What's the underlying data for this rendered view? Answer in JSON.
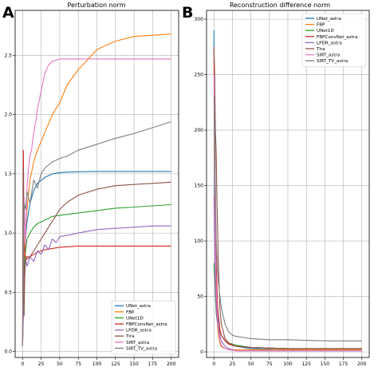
{
  "colors": {
    "UNet_astra": "#1f77b4",
    "FBP": "#ff7f0e",
    "UNet1D": "#2ca02c",
    "FBPConvNet_astra": "#d62728",
    "LPDR_astra": "#9467bd",
    "Tira": "#8c564b",
    "SIRT_astra": "#e377c2",
    "SIRT_TV_astra": "#7f7f7f"
  },
  "chart_data": [
    {
      "panel_letter": "A",
      "type": "line",
      "title": "Perturbation norm",
      "xlabel": "",
      "ylabel": "",
      "xlim": [
        -10,
        210
      ],
      "ylim": [
        -0.05,
        2.88
      ],
      "xticks": [
        0,
        25,
        50,
        75,
        100,
        125,
        150,
        175,
        200
      ],
      "yticks": [
        0.0,
        0.5,
        1.0,
        1.5,
        2.0,
        2.5
      ],
      "ytick_labels": [
        "0.0",
        "0.5",
        "1.0",
        "1.5",
        "2.0",
        "2.5"
      ],
      "grid": true,
      "legend_placement": "lower-right",
      "series": [
        {
          "name": "UNet_astra",
          "x": [
            0,
            1,
            2,
            4,
            6,
            10,
            15,
            20,
            30,
            40,
            50,
            60,
            80,
            100,
            150,
            200
          ],
          "y": [
            0.05,
            0.35,
            0.6,
            0.95,
            1.1,
            1.25,
            1.36,
            1.42,
            1.47,
            1.5,
            1.51,
            1.515,
            1.518,
            1.52,
            1.52,
            1.52
          ]
        },
        {
          "name": "FBP",
          "x": [
            0,
            1,
            2,
            4,
            6,
            10,
            15,
            20,
            30,
            40,
            50,
            60,
            75,
            90,
            100,
            125,
            150,
            175,
            200
          ],
          "y": [
            0.05,
            0.4,
            0.7,
            1.0,
            1.2,
            1.45,
            1.6,
            1.7,
            1.85,
            2.0,
            2.1,
            2.25,
            2.38,
            2.48,
            2.55,
            2.62,
            2.66,
            2.67,
            2.68
          ]
        },
        {
          "name": "UNet1D",
          "x": [
            0,
            2,
            4,
            6,
            10,
            15,
            20,
            30,
            40,
            50,
            75,
            100,
            125,
            150,
            175,
            200
          ],
          "y": [
            0.05,
            0.7,
            0.85,
            0.95,
            1.0,
            1.05,
            1.08,
            1.11,
            1.14,
            1.15,
            1.17,
            1.19,
            1.21,
            1.22,
            1.23,
            1.24
          ]
        },
        {
          "name": "FBPConvNet_astra",
          "x": [
            0,
            1,
            2,
            4,
            6,
            10,
            15,
            20,
            30,
            40,
            50,
            75,
            100,
            150,
            200
          ],
          "y": [
            0.05,
            1.7,
            0.9,
            0.8,
            0.78,
            0.8,
            0.82,
            0.84,
            0.86,
            0.87,
            0.88,
            0.89,
            0.89,
            0.89,
            0.89
          ]
        },
        {
          "name": "LPDR_astra",
          "x": [
            0,
            2,
            4,
            6,
            10,
            15,
            20,
            25,
            30,
            35,
            40,
            45,
            50,
            60,
            75,
            100,
            125,
            150,
            175,
            200
          ],
          "y": [
            0.05,
            0.5,
            0.78,
            0.72,
            0.8,
            0.76,
            0.85,
            0.82,
            0.9,
            0.86,
            0.95,
            0.92,
            0.97,
            0.98,
            1.0,
            1.03,
            1.04,
            1.05,
            1.06,
            1.06
          ]
        },
        {
          "name": "Tira",
          "x": [
            0,
            1,
            2,
            3,
            5,
            10,
            15,
            20,
            30,
            40,
            50,
            60,
            75,
            100,
            125,
            150,
            175,
            200
          ],
          "y": [
            0.05,
            1.55,
            0.3,
            0.7,
            0.8,
            0.8,
            0.85,
            0.9,
            1.0,
            1.1,
            1.2,
            1.26,
            1.32,
            1.37,
            1.4,
            1.41,
            1.42,
            1.43
          ]
        },
        {
          "name": "SIRT_astra",
          "x": [
            0,
            1,
            2,
            4,
            6,
            8,
            10,
            12,
            15,
            18,
            20,
            25,
            30,
            35,
            40,
            45,
            50,
            75,
            100,
            150,
            200
          ],
          "y": [
            0.05,
            0.6,
            1.3,
            0.9,
            1.4,
            1.55,
            1.65,
            1.7,
            1.85,
            1.95,
            2.05,
            2.2,
            2.35,
            2.42,
            2.45,
            2.46,
            2.47,
            2.47,
            2.47,
            2.47,
            2.47
          ]
        },
        {
          "name": "SIRT_TV_astra",
          "x": [
            0,
            2,
            4,
            6,
            10,
            15,
            20,
            25,
            30,
            40,
            50,
            60,
            75,
            100,
            125,
            150,
            175,
            200
          ],
          "y": [
            0.05,
            1.25,
            1.2,
            1.35,
            1.25,
            1.45,
            1.38,
            1.5,
            1.55,
            1.6,
            1.63,
            1.65,
            1.7,
            1.75,
            1.8,
            1.84,
            1.89,
            1.94
          ]
        }
      ]
    },
    {
      "panel_letter": "B",
      "type": "line",
      "title": "Reconstruction difference norm",
      "xlabel": "",
      "ylabel": "",
      "xlim": [
        -10,
        210
      ],
      "ylim": [
        -5,
        308
      ],
      "xticks": [
        0,
        25,
        50,
        75,
        100,
        125,
        150,
        175,
        200
      ],
      "yticks": [
        0,
        50,
        100,
        150,
        200,
        250,
        300
      ],
      "ytick_labels": [
        "0",
        "50",
        "100",
        "150",
        "200",
        "250",
        "300"
      ],
      "grid": true,
      "legend_placement": "top-right",
      "series": [
        {
          "name": "UNet_astra",
          "x": [
            0,
            1,
            2,
            3,
            4,
            5,
            6,
            8,
            10,
            15,
            20,
            30,
            50,
            100,
            150,
            200
          ],
          "y": [
            290,
            120,
            80,
            60,
            45,
            35,
            28,
            20,
            15,
            10,
            7,
            5,
            3,
            2,
            2,
            2
          ]
        },
        {
          "name": "FBP",
          "x": [
            0,
            1,
            2,
            3,
            4,
            6,
            8,
            10,
            15,
            20,
            30,
            50,
            100,
            200
          ],
          "y": [
            270,
            180,
            80,
            50,
            30,
            15,
            8,
            5,
            3,
            2,
            2,
            2,
            2,
            2
          ]
        },
        {
          "name": "UNet1D",
          "x": [
            0,
            1,
            2,
            3,
            5,
            8,
            10,
            15,
            20,
            30,
            50,
            100,
            200
          ],
          "y": [
            80,
            70,
            50,
            35,
            25,
            18,
            15,
            10,
            8,
            6,
            4,
            3,
            3
          ]
        },
        {
          "name": "FBPConvNet_astra",
          "x": [
            0,
            1,
            2,
            3,
            5,
            8,
            10,
            15,
            20,
            30,
            50,
            100,
            200
          ],
          "y": [
            275,
            220,
            140,
            80,
            40,
            20,
            15,
            10,
            7,
            5,
            4,
            3,
            3
          ]
        },
        {
          "name": "LPDR_astra",
          "x": [
            0,
            1,
            2,
            3,
            5,
            8,
            10,
            15,
            20,
            25,
            30,
            50,
            100,
            200
          ],
          "y": [
            140,
            110,
            60,
            40,
            25,
            15,
            10,
            5,
            3,
            2,
            1,
            1,
            1,
            1
          ]
        },
        {
          "name": "Tira",
          "x": [
            0,
            1,
            2,
            3,
            4,
            6,
            8,
            10,
            15,
            20,
            30,
            50,
            100,
            200
          ],
          "y": [
            275,
            250,
            200,
            180,
            140,
            80,
            40,
            25,
            12,
            8,
            5,
            4,
            3,
            3
          ]
        },
        {
          "name": "SIRT_astra",
          "x": [
            0,
            1,
            2,
            3,
            5,
            8,
            10,
            15,
            20,
            30,
            50,
            100,
            200
          ],
          "y": [
            250,
            200,
            100,
            60,
            25,
            10,
            6,
            3,
            2,
            1,
            1,
            1,
            1
          ]
        },
        {
          "name": "SIRT_TV_astra",
          "x": [
            0,
            1,
            2,
            3,
            5,
            8,
            10,
            15,
            20,
            25,
            30,
            40,
            50,
            75,
            100,
            150,
            200
          ],
          "y": [
            230,
            200,
            150,
            100,
            70,
            50,
            40,
            25,
            18,
            15,
            14,
            13,
            12,
            11,
            11,
            10,
            10
          ]
        }
      ]
    }
  ]
}
